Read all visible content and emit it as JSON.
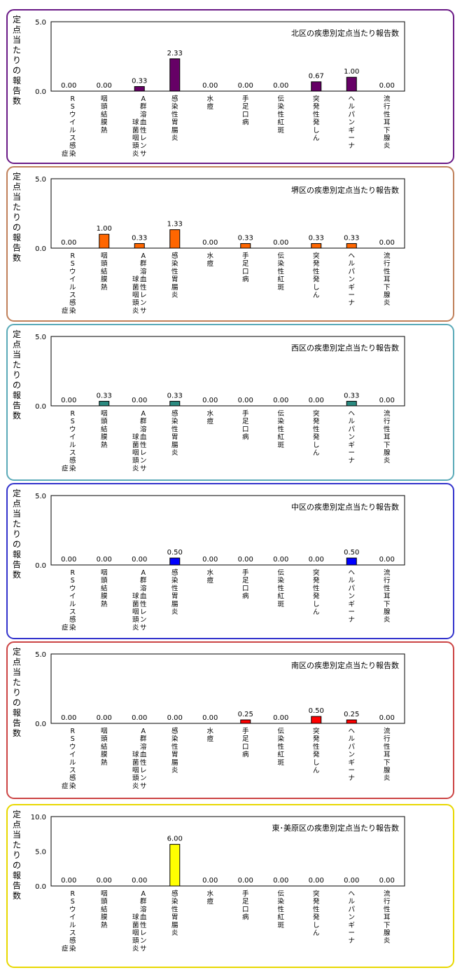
{
  "y_axis_label": "定点当たりの報告数",
  "chart_data": [
    {
      "type": "bar",
      "title": "北区の疾患別定点当たり報告数",
      "frame_color": "#6a1a86",
      "bar_color": "#660066",
      "ylim": [
        0,
        5
      ],
      "y_ticks": [
        "5.0",
        "0.0"
      ],
      "categories": [
        [
          "RSウイルス感染",
          "症"
        ],
        [
          "咽頭結膜熱"
        ],
        [
          "A群溶血性レンサ",
          "球菌咽頭炎"
        ],
        [
          "感染性胃腸炎"
        ],
        [
          "水痘"
        ],
        [
          "手足口病"
        ],
        [
          "伝染性紅斑"
        ],
        [
          "突発性発しん"
        ],
        [
          "ヘルパンギーナ"
        ],
        [
          "流行性耳下腺炎"
        ]
      ],
      "values": [
        0.0,
        0.0,
        0.33,
        2.33,
        0.0,
        0.0,
        0.0,
        0.67,
        1.0,
        0.0
      ],
      "value_labels": [
        "0.00",
        "0.00",
        "0.33",
        "2.33",
        "0.00",
        "0.00",
        "0.00",
        "0.67",
        "1.00",
        "0.00"
      ]
    },
    {
      "type": "bar",
      "title": "堺区の疾患別定点当たり報告数",
      "frame_color": "#c0805a",
      "bar_color": "#ff6600",
      "ylim": [
        0,
        5
      ],
      "y_ticks": [
        "5.0",
        "0.0"
      ],
      "categories": [
        [
          "RSウイルス感染",
          "症"
        ],
        [
          "咽頭結膜熱"
        ],
        [
          "A群溶血性レンサ",
          "球菌咽頭炎"
        ],
        [
          "感染性胃腸炎"
        ],
        [
          "水痘"
        ],
        [
          "手足口病"
        ],
        [
          "伝染性紅斑"
        ],
        [
          "突発性発しん"
        ],
        [
          "ヘルパンギーナ"
        ],
        [
          "流行性耳下腺炎"
        ]
      ],
      "values": [
        0.0,
        1.0,
        0.33,
        1.33,
        0.0,
        0.33,
        0.0,
        0.33,
        0.33,
        0.0
      ],
      "value_labels": [
        "0.00",
        "1.00",
        "0.33",
        "1.33",
        "0.00",
        "0.33",
        "0.00",
        "0.33",
        "0.33",
        "0.00"
      ]
    },
    {
      "type": "bar",
      "title": "西区の疾患別定点当たり報告数",
      "frame_color": "#5aaab8",
      "bar_color": "#2a8a80",
      "ylim": [
        0,
        5
      ],
      "y_ticks": [
        "5.0",
        "0.0"
      ],
      "categories": [
        [
          "RSウイルス感染",
          "症"
        ],
        [
          "咽頭結膜熱"
        ],
        [
          "A群溶血性レンサ",
          "球菌咽頭炎"
        ],
        [
          "感染性胃腸炎"
        ],
        [
          "水痘"
        ],
        [
          "手足口病"
        ],
        [
          "伝染性紅斑"
        ],
        [
          "突発性発しん"
        ],
        [
          "ヘルパンギーナ"
        ],
        [
          "流行性耳下腺炎"
        ]
      ],
      "values": [
        0.0,
        0.33,
        0.0,
        0.33,
        0.0,
        0.0,
        0.0,
        0.0,
        0.33,
        0.0
      ],
      "value_labels": [
        "0.00",
        "0.33",
        "0.00",
        "0.33",
        "0.00",
        "0.00",
        "0.00",
        "0.00",
        "0.33",
        "0.00"
      ]
    },
    {
      "type": "bar",
      "title": "中区の疾患別定点当たり報告数",
      "frame_color": "#3333cc",
      "bar_color": "#0000ff",
      "ylim": [
        0,
        5
      ],
      "y_ticks": [
        "5.0",
        "0.0"
      ],
      "categories": [
        [
          "RSウイルス感染",
          "症"
        ],
        [
          "咽頭結膜熱"
        ],
        [
          "A群溶血性レンサ",
          "球菌咽頭炎"
        ],
        [
          "感染性胃腸炎"
        ],
        [
          "水痘"
        ],
        [
          "手足口病"
        ],
        [
          "伝染性紅斑"
        ],
        [
          "突発性発しん"
        ],
        [
          "ヘルパンギーナ"
        ],
        [
          "流行性耳下腺炎"
        ]
      ],
      "values": [
        0.0,
        0.0,
        0.0,
        0.5,
        0.0,
        0.0,
        0.0,
        0.0,
        0.5,
        0.0
      ],
      "value_labels": [
        "0.00",
        "0.00",
        "0.00",
        "0.50",
        "0.00",
        "0.00",
        "0.00",
        "0.00",
        "0.50",
        "0.00"
      ]
    },
    {
      "type": "bar",
      "title": "南区の疾患別定点当たり報告数",
      "frame_color": "#cc4444",
      "bar_color": "#ff0000",
      "ylim": [
        0,
        5
      ],
      "y_ticks": [
        "5.0",
        "0.0"
      ],
      "categories": [
        [
          "RSウイルス感染",
          "症"
        ],
        [
          "咽頭結膜熱"
        ],
        [
          "A群溶血性レンサ",
          "球菌咽頭炎"
        ],
        [
          "感染性胃腸炎"
        ],
        [
          "水痘"
        ],
        [
          "手足口病"
        ],
        [
          "伝染性紅斑"
        ],
        [
          "突発性発しん"
        ],
        [
          "ヘルパンギーナ"
        ],
        [
          "流行性耳下腺炎"
        ]
      ],
      "values": [
        0.0,
        0.0,
        0.0,
        0.0,
        0.0,
        0.25,
        0.0,
        0.5,
        0.25,
        0.0
      ],
      "value_labels": [
        "0.00",
        "0.00",
        "0.00",
        "0.00",
        "0.00",
        "0.25",
        "0.00",
        "0.50",
        "0.25",
        "0.00"
      ]
    },
    {
      "type": "bar",
      "title": "東･美原区の疾患別定点当たり報告数",
      "frame_color": "#e8d800",
      "bar_color": "#ffff00",
      "ylim": [
        0,
        10
      ],
      "y_ticks": [
        "10.0",
        "5.0",
        "0.0"
      ],
      "categories": [
        [
          "RSウイルス感染",
          "症"
        ],
        [
          "咽頭結膜熱"
        ],
        [
          "A群溶血性レンサ",
          "球菌咽頭炎"
        ],
        [
          "感染性胃腸炎"
        ],
        [
          "水痘"
        ],
        [
          "手足口病"
        ],
        [
          "伝染性紅斑"
        ],
        [
          "突発性発しん"
        ],
        [
          "ヘルパンギーナ"
        ],
        [
          "流行性耳下腺炎"
        ]
      ],
      "values": [
        0.0,
        0.0,
        0.0,
        6.0,
        0.0,
        0.0,
        0.0,
        0.0,
        0.0,
        0.0
      ],
      "value_labels": [
        "0.00",
        "0.00",
        "0.00",
        "6.00",
        "0.00",
        "0.00",
        "0.00",
        "0.00",
        "0.00",
        "0.00"
      ]
    }
  ]
}
